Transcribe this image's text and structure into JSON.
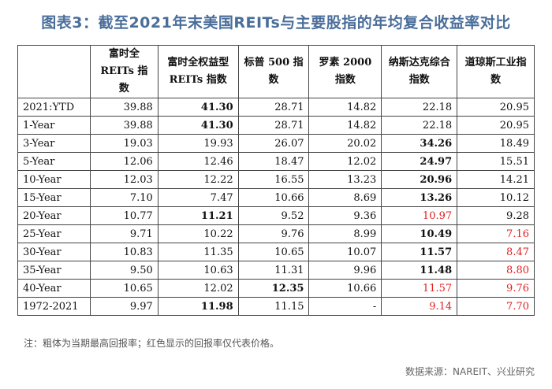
{
  "title": "图表3：截至2021年末美国REITs与主要股指的年均复合收益率对比",
  "headers": [
    "",
    "富时全 REITs 指数",
    "富时全权益型 REITs 指数",
    "标普 500 指数",
    "罗素 2000 指数",
    "纳斯达克综合指数",
    "道琼斯工业指数"
  ],
  "rows": [
    {
      "label": "2021:YTD",
      "cells": [
        {
          "v": "39.88"
        },
        {
          "v": "41.30",
          "b": true
        },
        {
          "v": "28.71"
        },
        {
          "v": "14.82"
        },
        {
          "v": "22.18"
        },
        {
          "v": "20.95"
        }
      ]
    },
    {
      "label": "1-Year",
      "cells": [
        {
          "v": "39.88"
        },
        {
          "v": "41.30",
          "b": true
        },
        {
          "v": "28.71"
        },
        {
          "v": "14.82"
        },
        {
          "v": "22.18"
        },
        {
          "v": "20.95"
        }
      ]
    },
    {
      "label": "3-Year",
      "cells": [
        {
          "v": "19.03"
        },
        {
          "v": "19.93"
        },
        {
          "v": "26.07"
        },
        {
          "v": "20.02"
        },
        {
          "v": "34.26",
          "b": true
        },
        {
          "v": "18.49"
        }
      ]
    },
    {
      "label": "5-Year",
      "cells": [
        {
          "v": "12.06"
        },
        {
          "v": "12.46"
        },
        {
          "v": "18.47"
        },
        {
          "v": "12.02"
        },
        {
          "v": "24.97",
          "b": true
        },
        {
          "v": "15.51"
        }
      ]
    },
    {
      "label": "10-Year",
      "cells": [
        {
          "v": "12.03"
        },
        {
          "v": "12.22"
        },
        {
          "v": "16.55"
        },
        {
          "v": "13.23"
        },
        {
          "v": "20.96",
          "b": true
        },
        {
          "v": "14.21"
        }
      ]
    },
    {
      "label": "15-Year",
      "cells": [
        {
          "v": "7.10"
        },
        {
          "v": "7.47"
        },
        {
          "v": "10.66"
        },
        {
          "v": "8.69"
        },
        {
          "v": "13.26",
          "b": true
        },
        {
          "v": "10.12"
        }
      ]
    },
    {
      "label": "20-Year",
      "cells": [
        {
          "v": "10.77"
        },
        {
          "v": "11.21",
          "b": true
        },
        {
          "v": "9.52"
        },
        {
          "v": "9.36"
        },
        {
          "v": "10.97",
          "r": true
        },
        {
          "v": "9.28"
        }
      ]
    },
    {
      "label": "25-Year",
      "cells": [
        {
          "v": "9.71"
        },
        {
          "v": "10.22"
        },
        {
          "v": "9.76"
        },
        {
          "v": "8.99"
        },
        {
          "v": "10.49",
          "b": true
        },
        {
          "v": "7.16",
          "r": true
        }
      ]
    },
    {
      "label": "30-Year",
      "cells": [
        {
          "v": "10.83"
        },
        {
          "v": "11.35"
        },
        {
          "v": "10.65"
        },
        {
          "v": "10.07"
        },
        {
          "v": "11.57",
          "b": true
        },
        {
          "v": "8.47",
          "r": true
        }
      ]
    },
    {
      "label": "35-Year",
      "cells": [
        {
          "v": "9.50"
        },
        {
          "v": "10.63"
        },
        {
          "v": "11.31"
        },
        {
          "v": "9.96"
        },
        {
          "v": "11.48",
          "b": true
        },
        {
          "v": "8.80",
          "r": true
        }
      ]
    },
    {
      "label": "40-Year",
      "cells": [
        {
          "v": "10.65"
        },
        {
          "v": "12.02"
        },
        {
          "v": "12.35",
          "b": true
        },
        {
          "v": "10.66"
        },
        {
          "v": "11.57",
          "r": true
        },
        {
          "v": "9.76",
          "r": true
        }
      ]
    },
    {
      "label": "1972-2021",
      "cells": [
        {
          "v": "9.97"
        },
        {
          "v": "11.98",
          "b": true
        },
        {
          "v": "11.15"
        },
        {
          "v": "-"
        },
        {
          "v": "9.14",
          "r": true
        },
        {
          "v": "7.70",
          "r": true
        }
      ]
    }
  ],
  "note": "注：粗体为当期最高回报率；红色显示的回报率仅代表价格。",
  "source": "数据来源：NAREIT、兴业研究",
  "colors": {
    "title": "#4a6e9a",
    "highlight_red": "#e02020"
  }
}
